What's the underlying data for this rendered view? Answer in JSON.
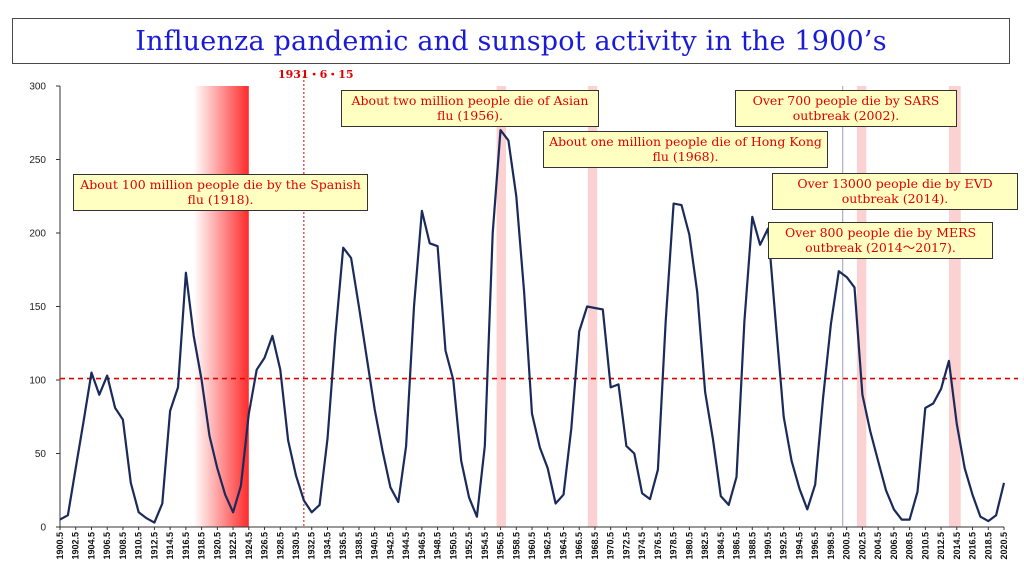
{
  "title": "Influenza pandemic and sunspot activity in the 1900’s",
  "date_marker": {
    "label": "1931・6・15",
    "x": 1931.5
  },
  "chart_data": {
    "type": "line",
    "title": "Influenza pandemic and sunspot activity in the 1900’s",
    "xlabel": "",
    "ylabel": "",
    "ylim": [
      0,
      300
    ],
    "yticks": [
      0,
      50,
      100,
      150,
      200,
      250,
      300
    ],
    "xlim": [
      1900.5,
      2020.5
    ],
    "xtick_labels": [
      "1900.5",
      "1902.5",
      "1904.5",
      "1906.5",
      "1908.5",
      "1910.5",
      "1912.5",
      "1914.5",
      "1916.5",
      "1918.5",
      "1920.5",
      "1922.5",
      "1924.5",
      "1926.5",
      "1928.5",
      "1930.5",
      "1932.5",
      "1934.5",
      "1936.5",
      "1938.5",
      "1940.5",
      "1942.5",
      "1944.5",
      "1946.5",
      "1948.5",
      "1950.5",
      "1952.5",
      "1954.5",
      "1956.5",
      "1958.5",
      "1960.5",
      "1962.5",
      "1964.5",
      "1966.5",
      "1968.5",
      "1970.5",
      "1972.5",
      "1974.5",
      "1976.5",
      "1978.5",
      "1980.5",
      "1982.5",
      "1984.5",
      "1986.5",
      "1988.5",
      "1990.5",
      "1992.5",
      "1994.5",
      "1996.5",
      "1998.5",
      "2000.5",
      "2002.5",
      "2004.5",
      "2006.5",
      "2008.5",
      "2010.5",
      "2012.5",
      "2014.5",
      "2016.5",
      "2018.5",
      "2020.5"
    ],
    "grid": false,
    "line_color": "#1a2a5a",
    "reference_line": {
      "y": 101,
      "color": "#e00000",
      "style": "dashed"
    },
    "series": [
      {
        "x": [
          1900.5,
          1901.5,
          1902.5,
          1903.5,
          1904.5,
          1905.5,
          1906.5,
          1907.5,
          1908.5,
          1909.5,
          1910.5,
          1911.5,
          1912.5,
          1913.5,
          1914.5,
          1915.5,
          1916.5,
          1917.5,
          1918.5,
          1919.5,
          1920.5,
          1921.5,
          1922.5,
          1923.5,
          1924.5,
          1925.5,
          1926.5,
          1927.5,
          1928.5,
          1929.5,
          1930.5,
          1931.5,
          1932.5,
          1933.5,
          1934.5,
          1935.5,
          1936.5,
          1937.5,
          1938.5,
          1939.5,
          1940.5,
          1941.5,
          1942.5,
          1943.5,
          1944.5,
          1945.5,
          1946.5,
          1947.5,
          1948.5,
          1949.5,
          1950.5,
          1951.5,
          1952.5,
          1953.5,
          1954.5,
          1955.5,
          1956.5,
          1957.5,
          1958.5,
          1959.5,
          1960.5,
          1961.5,
          1962.5,
          1963.5,
          1964.5,
          1965.5,
          1966.5,
          1967.5,
          1968.5,
          1969.5,
          1970.5,
          1971.5,
          1972.5,
          1973.5,
          1974.5,
          1975.5,
          1976.5,
          1977.5,
          1978.5,
          1979.5,
          1980.5,
          1981.5,
          1982.5,
          1983.5,
          1984.5,
          1985.5,
          1986.5,
          1987.5,
          1988.5,
          1989.5,
          1990.5,
          1991.5,
          1992.5,
          1993.5,
          1994.5,
          1995.5,
          1996.5,
          1997.5,
          1998.5,
          1999.5,
          2000.5,
          2001.5,
          2002.5,
          2003.5,
          2004.5,
          2005.5,
          2006.5,
          2007.5,
          2008.5,
          2009.5,
          2010.5,
          2011.5,
          2012.5,
          2013.5,
          2014.5,
          2015.5,
          2016.5,
          2017.5,
          2018.5,
          2019.5,
          2020.5
        ],
        "values": [
          5,
          8,
          40,
          72,
          105,
          90,
          103,
          81,
          73,
          30,
          10,
          6,
          3,
          16,
          79,
          95,
          173,
          130,
          100,
          62,
          40,
          22,
          10,
          28,
          77,
          107,
          115,
          130,
          107,
          59,
          35,
          18,
          10,
          15,
          60,
          130,
          190,
          183,
          150,
          115,
          80,
          52,
          27,
          17,
          55,
          150,
          215,
          193,
          191,
          120,
          100,
          45,
          20,
          7,
          55,
          200,
          270,
          263,
          225,
          160,
          77,
          54,
          40,
          16,
          22,
          67,
          133,
          150,
          149,
          148,
          95,
          97,
          55,
          50,
          23,
          19,
          39,
          140,
          220,
          219,
          199,
          160,
          92,
          60,
          21,
          15,
          34,
          140,
          211,
          192,
          203,
          138,
          75,
          45,
          26,
          12,
          29,
          88,
          138,
          174,
          170,
          163,
          90,
          65,
          45,
          25,
          12,
          5,
          5,
          24,
          81,
          84,
          94,
          113,
          70,
          40,
          22,
          7,
          4,
          8,
          30
        ]
      }
    ],
    "highlight_bands": [
      {
        "from": 1917.5,
        "to": 1924.5,
        "style": "gradient-red"
      },
      {
        "from": 1956.0,
        "to": 1957.2,
        "style": "light-red"
      },
      {
        "from": 1967.6,
        "to": 1968.8,
        "style": "light-red"
      },
      {
        "from": 2001.8,
        "to": 2003.0,
        "style": "light-red"
      },
      {
        "from": 2013.5,
        "to": 2015.0,
        "style": "light-red"
      }
    ],
    "annotations": [
      {
        "text": "About 100 million people die by the Spanish flu (1918)."
      },
      {
        "text": "About two million people die of Asian flu (1956)."
      },
      {
        "text": "About one million people die of Hong Kong flu (1968)."
      },
      {
        "text": "Over 700 people die by SARS outbreak (2002)."
      },
      {
        "text": "Over 13000 people die by EVD outbreak (2014)."
      },
      {
        "text": "Over 800 people die by MERS outbreak (2014～2017)."
      }
    ]
  }
}
